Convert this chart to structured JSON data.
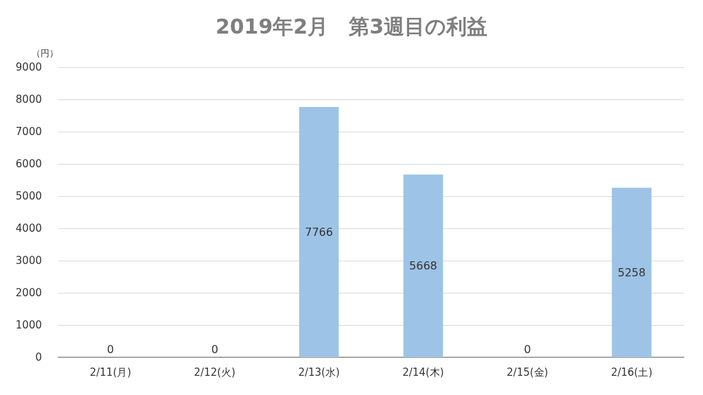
{
  "chart_data": {
    "type": "bar",
    "title": "2019年2月　第3週目の利益",
    "ylabel": "（円）",
    "categories": [
      "2/11(月)",
      "2/12(火)",
      "2/13(水)",
      "2/14(木)",
      "2/15(金)",
      "2/16(土)"
    ],
    "values": [
      0,
      0,
      7766,
      5668,
      0,
      5258
    ],
    "color": "#9dc3e6",
    "ylim": [
      0,
      9000
    ],
    "yticks": [
      0,
      1000,
      2000,
      3000,
      4000,
      5000,
      6000,
      7000,
      8000,
      9000
    ],
    "grid": "y",
    "data_labels": true
  }
}
